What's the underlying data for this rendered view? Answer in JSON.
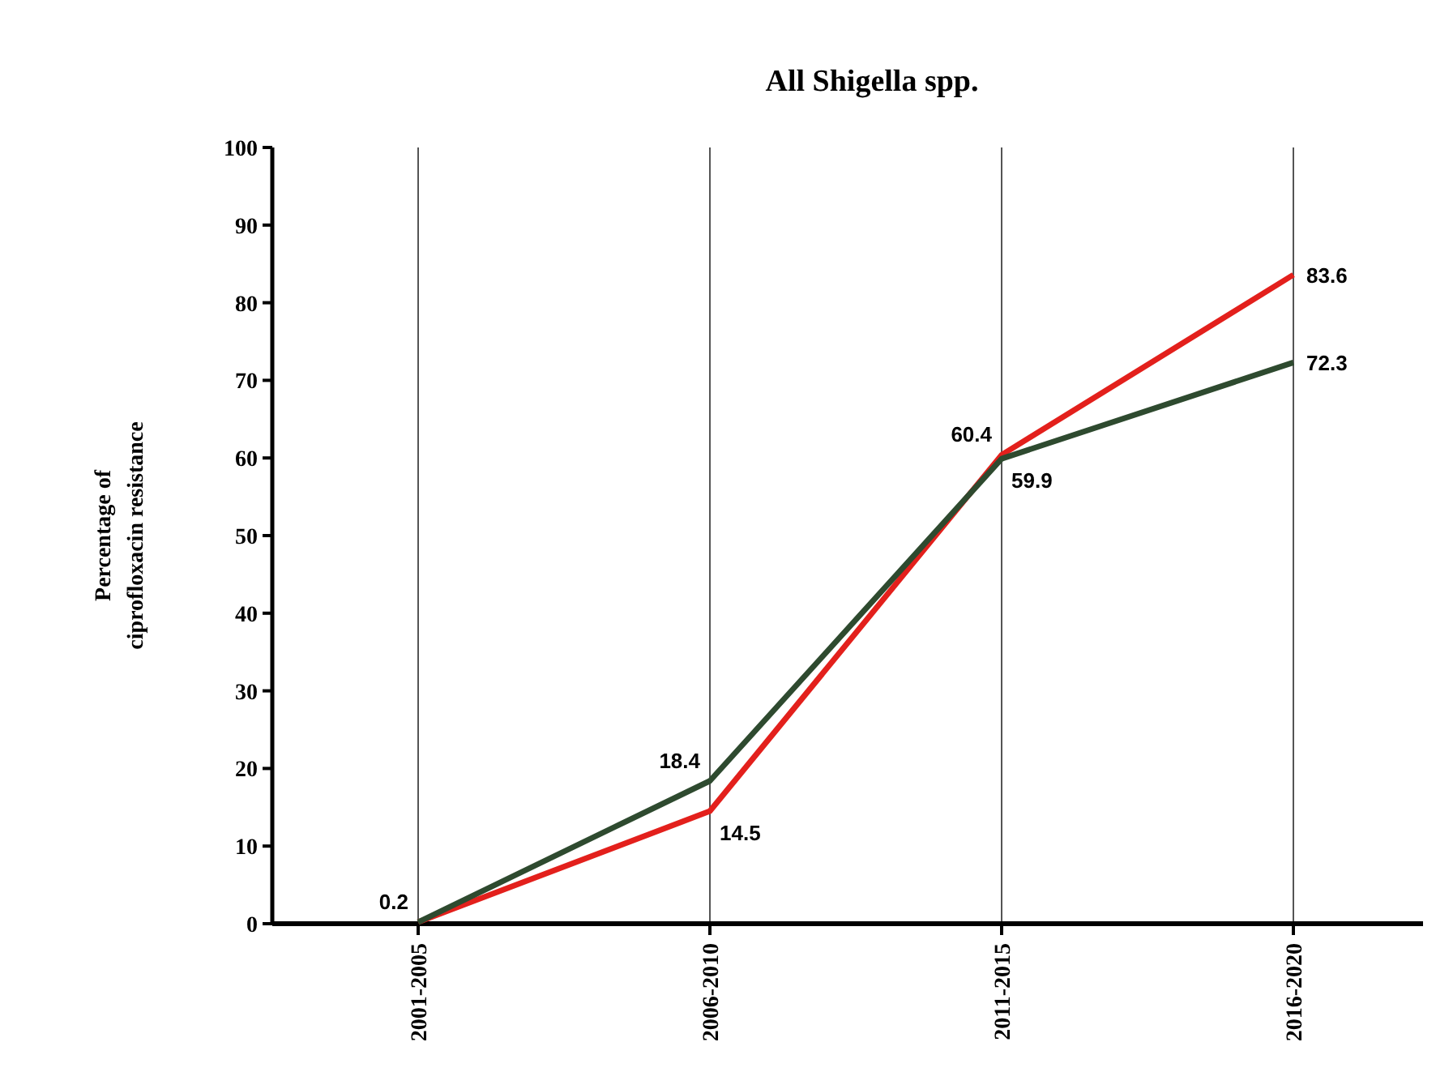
{
  "chart_data": {
    "type": "line",
    "title": "All Shigella spp.",
    "ylabel": "Percentage of ciprofloxacin resistance",
    "categories": [
      "2001-2005",
      "2006-2010",
      "2011-2015",
      "2016-2020"
    ],
    "series": [
      {
        "color": "#e3201c",
        "values": [
          0.2,
          14.5,
          60.4,
          83.6
        ],
        "value_labels": [
          null,
          "14.5",
          "60.4",
          "83.6"
        ]
      },
      {
        "color": "#2e4a2f",
        "values": [
          0.2,
          18.4,
          59.9,
          72.3
        ],
        "value_labels": [
          "0.2",
          "18.4",
          "59.9",
          "72.3"
        ]
      }
    ],
    "ylim": [
      0,
      100
    ],
    "yticks": [
      0,
      10,
      20,
      30,
      40,
      50,
      60,
      70,
      80,
      90,
      100
    ],
    "grid": "x",
    "marker": "none",
    "line_style": "solid"
  }
}
